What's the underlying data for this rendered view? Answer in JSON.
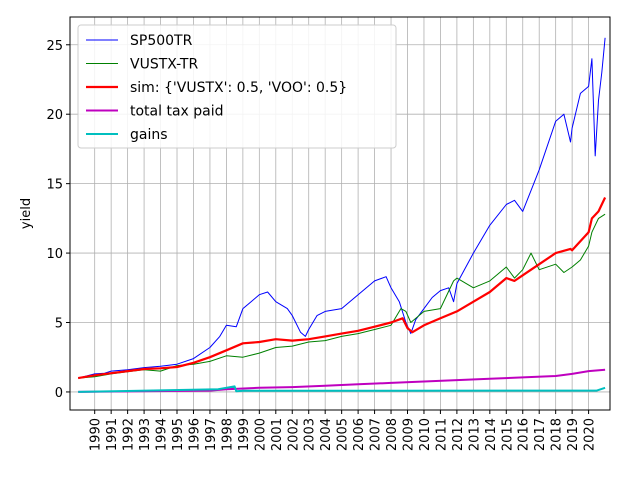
{
  "chart_data": {
    "type": "line",
    "title": "",
    "xlabel": "",
    "ylabel": "yield",
    "xlim": [
      1988.5,
      2021.3
    ],
    "ylim": [
      -1.3,
      27.0
    ],
    "grid": true,
    "legend_position": "top-left",
    "yticks": [
      0,
      5,
      10,
      15,
      20,
      25
    ],
    "xticks": [
      "1990",
      "1991",
      "1992",
      "1993",
      "1994",
      "1995",
      "1996",
      "1997",
      "1998",
      "1999",
      "2000",
      "2001",
      "2002",
      "2003",
      "2004",
      "2005",
      "2006",
      "2007",
      "2008",
      "2009",
      "2010",
      "2011",
      "2012",
      "2013",
      "2014",
      "2015",
      "2016",
      "2017",
      "2018",
      "2019",
      "2020"
    ],
    "series": [
      {
        "name": "SP500TR",
        "color": "#0000ff",
        "x": [
          1989.0,
          1990.0,
          1990.6,
          1991.0,
          1992.0,
          1993.0,
          1994.0,
          1995.0,
          1996.0,
          1997.0,
          1997.6,
          1998.0,
          1998.6,
          1999.0,
          1999.5,
          2000.0,
          2000.5,
          2001.0,
          2001.7,
          2002.0,
          2002.5,
          2002.8,
          2003.0,
          2003.5,
          2004.0,
          2005.0,
          2006.0,
          2007.0,
          2007.7,
          2008.0,
          2008.5,
          2008.9,
          2009.2,
          2009.5,
          2010.0,
          2010.5,
          2011.0,
          2011.5,
          2011.8,
          2012.0,
          2013.0,
          2014.0,
          2015.0,
          2015.5,
          2016.0,
          2016.5,
          2017.0,
          2018.0,
          2018.5,
          2018.9,
          2019.0,
          2019.5,
          2020.0,
          2020.2,
          2020.4,
          2020.6,
          2020.8,
          2021.0
        ],
        "y": [
          1.0,
          1.3,
          1.35,
          1.5,
          1.6,
          1.75,
          1.85,
          2.0,
          2.4,
          3.2,
          4.0,
          4.8,
          4.7,
          6.0,
          6.5,
          7.0,
          7.2,
          6.5,
          6.0,
          5.5,
          4.3,
          4.0,
          4.5,
          5.5,
          5.8,
          6.0,
          7.0,
          8.0,
          8.3,
          7.5,
          6.5,
          5.0,
          4.2,
          5.2,
          6.0,
          6.8,
          7.3,
          7.5,
          6.5,
          7.8,
          10.0,
          12.0,
          13.5,
          13.8,
          13.0,
          14.5,
          16.0,
          19.5,
          20.0,
          18.0,
          19.0,
          21.5,
          22.0,
          24.0,
          17.0,
          21.0,
          23.0,
          25.5
        ]
      },
      {
        "name": "VUSTX-TR",
        "color": "#008000",
        "x": [
          1989.0,
          1990.0,
          1991.0,
          1992.0,
          1993.0,
          1994.0,
          1995.0,
          1996.0,
          1997.0,
          1998.0,
          1999.0,
          2000.0,
          2001.0,
          2002.0,
          2003.0,
          2004.0,
          2005.0,
          2006.0,
          2007.0,
          2008.0,
          2008.6,
          2008.9,
          2009.2,
          2010.0,
          2011.0,
          2011.8,
          2012.0,
          2013.0,
          2014.0,
          2015.0,
          2015.5,
          2016.0,
          2016.5,
          2017.0,
          2018.0,
          2018.5,
          2019.0,
          2019.5,
          2020.0,
          2020.2,
          2020.6,
          2021.0
        ],
        "y": [
          1.0,
          1.1,
          1.3,
          1.45,
          1.6,
          1.5,
          1.9,
          2.0,
          2.2,
          2.6,
          2.5,
          2.8,
          3.2,
          3.3,
          3.6,
          3.7,
          4.0,
          4.2,
          4.5,
          4.8,
          6.0,
          5.8,
          5.0,
          5.8,
          6.0,
          8.0,
          8.2,
          7.5,
          8.0,
          9.0,
          8.2,
          8.8,
          10.0,
          8.8,
          9.2,
          8.6,
          9.0,
          9.5,
          10.5,
          11.5,
          12.5,
          12.8
        ]
      },
      {
        "name": "sim: {'VUSTX': 0.5, 'VOO': 0.5}",
        "color": "#ff0000",
        "x": [
          1989.0,
          1990.0,
          1991.0,
          1992.0,
          1993.0,
          1994.0,
          1995.0,
          1996.0,
          1997.0,
          1998.0,
          1999.0,
          2000.0,
          2001.0,
          2002.0,
          2003.0,
          2004.0,
          2005.0,
          2006.0,
          2007.0,
          2008.0,
          2008.7,
          2009.0,
          2009.3,
          2010.0,
          2011.0,
          2012.0,
          2013.0,
          2014.0,
          2015.0,
          2015.5,
          2016.0,
          2017.0,
          2018.0,
          2018.9,
          2019.0,
          2020.0,
          2020.2,
          2020.6,
          2021.0
        ],
        "y": [
          1.0,
          1.2,
          1.35,
          1.5,
          1.65,
          1.7,
          1.8,
          2.1,
          2.5,
          3.0,
          3.5,
          3.6,
          3.8,
          3.7,
          3.8,
          4.0,
          4.2,
          4.4,
          4.7,
          5.0,
          5.3,
          4.6,
          4.3,
          4.8,
          5.3,
          5.8,
          6.5,
          7.2,
          8.2,
          8.0,
          8.4,
          9.2,
          10.0,
          10.3,
          10.2,
          11.5,
          12.5,
          13.0,
          14.0
        ]
      },
      {
        "name": "total tax paid",
        "color": "#bf00bf",
        "x": [
          1989.0,
          1997.0,
          1998.0,
          2000.0,
          2002.0,
          2004.0,
          2006.0,
          2008.0,
          2010.0,
          2012.0,
          2014.0,
          2016.0,
          2018.0,
          2019.0,
          2020.0,
          2021.0
        ],
        "y": [
          0.0,
          0.1,
          0.2,
          0.3,
          0.35,
          0.45,
          0.55,
          0.65,
          0.75,
          0.85,
          0.95,
          1.05,
          1.15,
          1.3,
          1.5,
          1.6
        ]
      },
      {
        "name": "gains",
        "color": "#00bfbf",
        "x": [
          1989.0,
          1997.5,
          1998.5,
          1998.6,
          1999.0,
          2020.5,
          2021.0
        ],
        "y": [
          0.0,
          0.2,
          0.4,
          0.05,
          0.08,
          0.1,
          0.3
        ]
      }
    ]
  }
}
